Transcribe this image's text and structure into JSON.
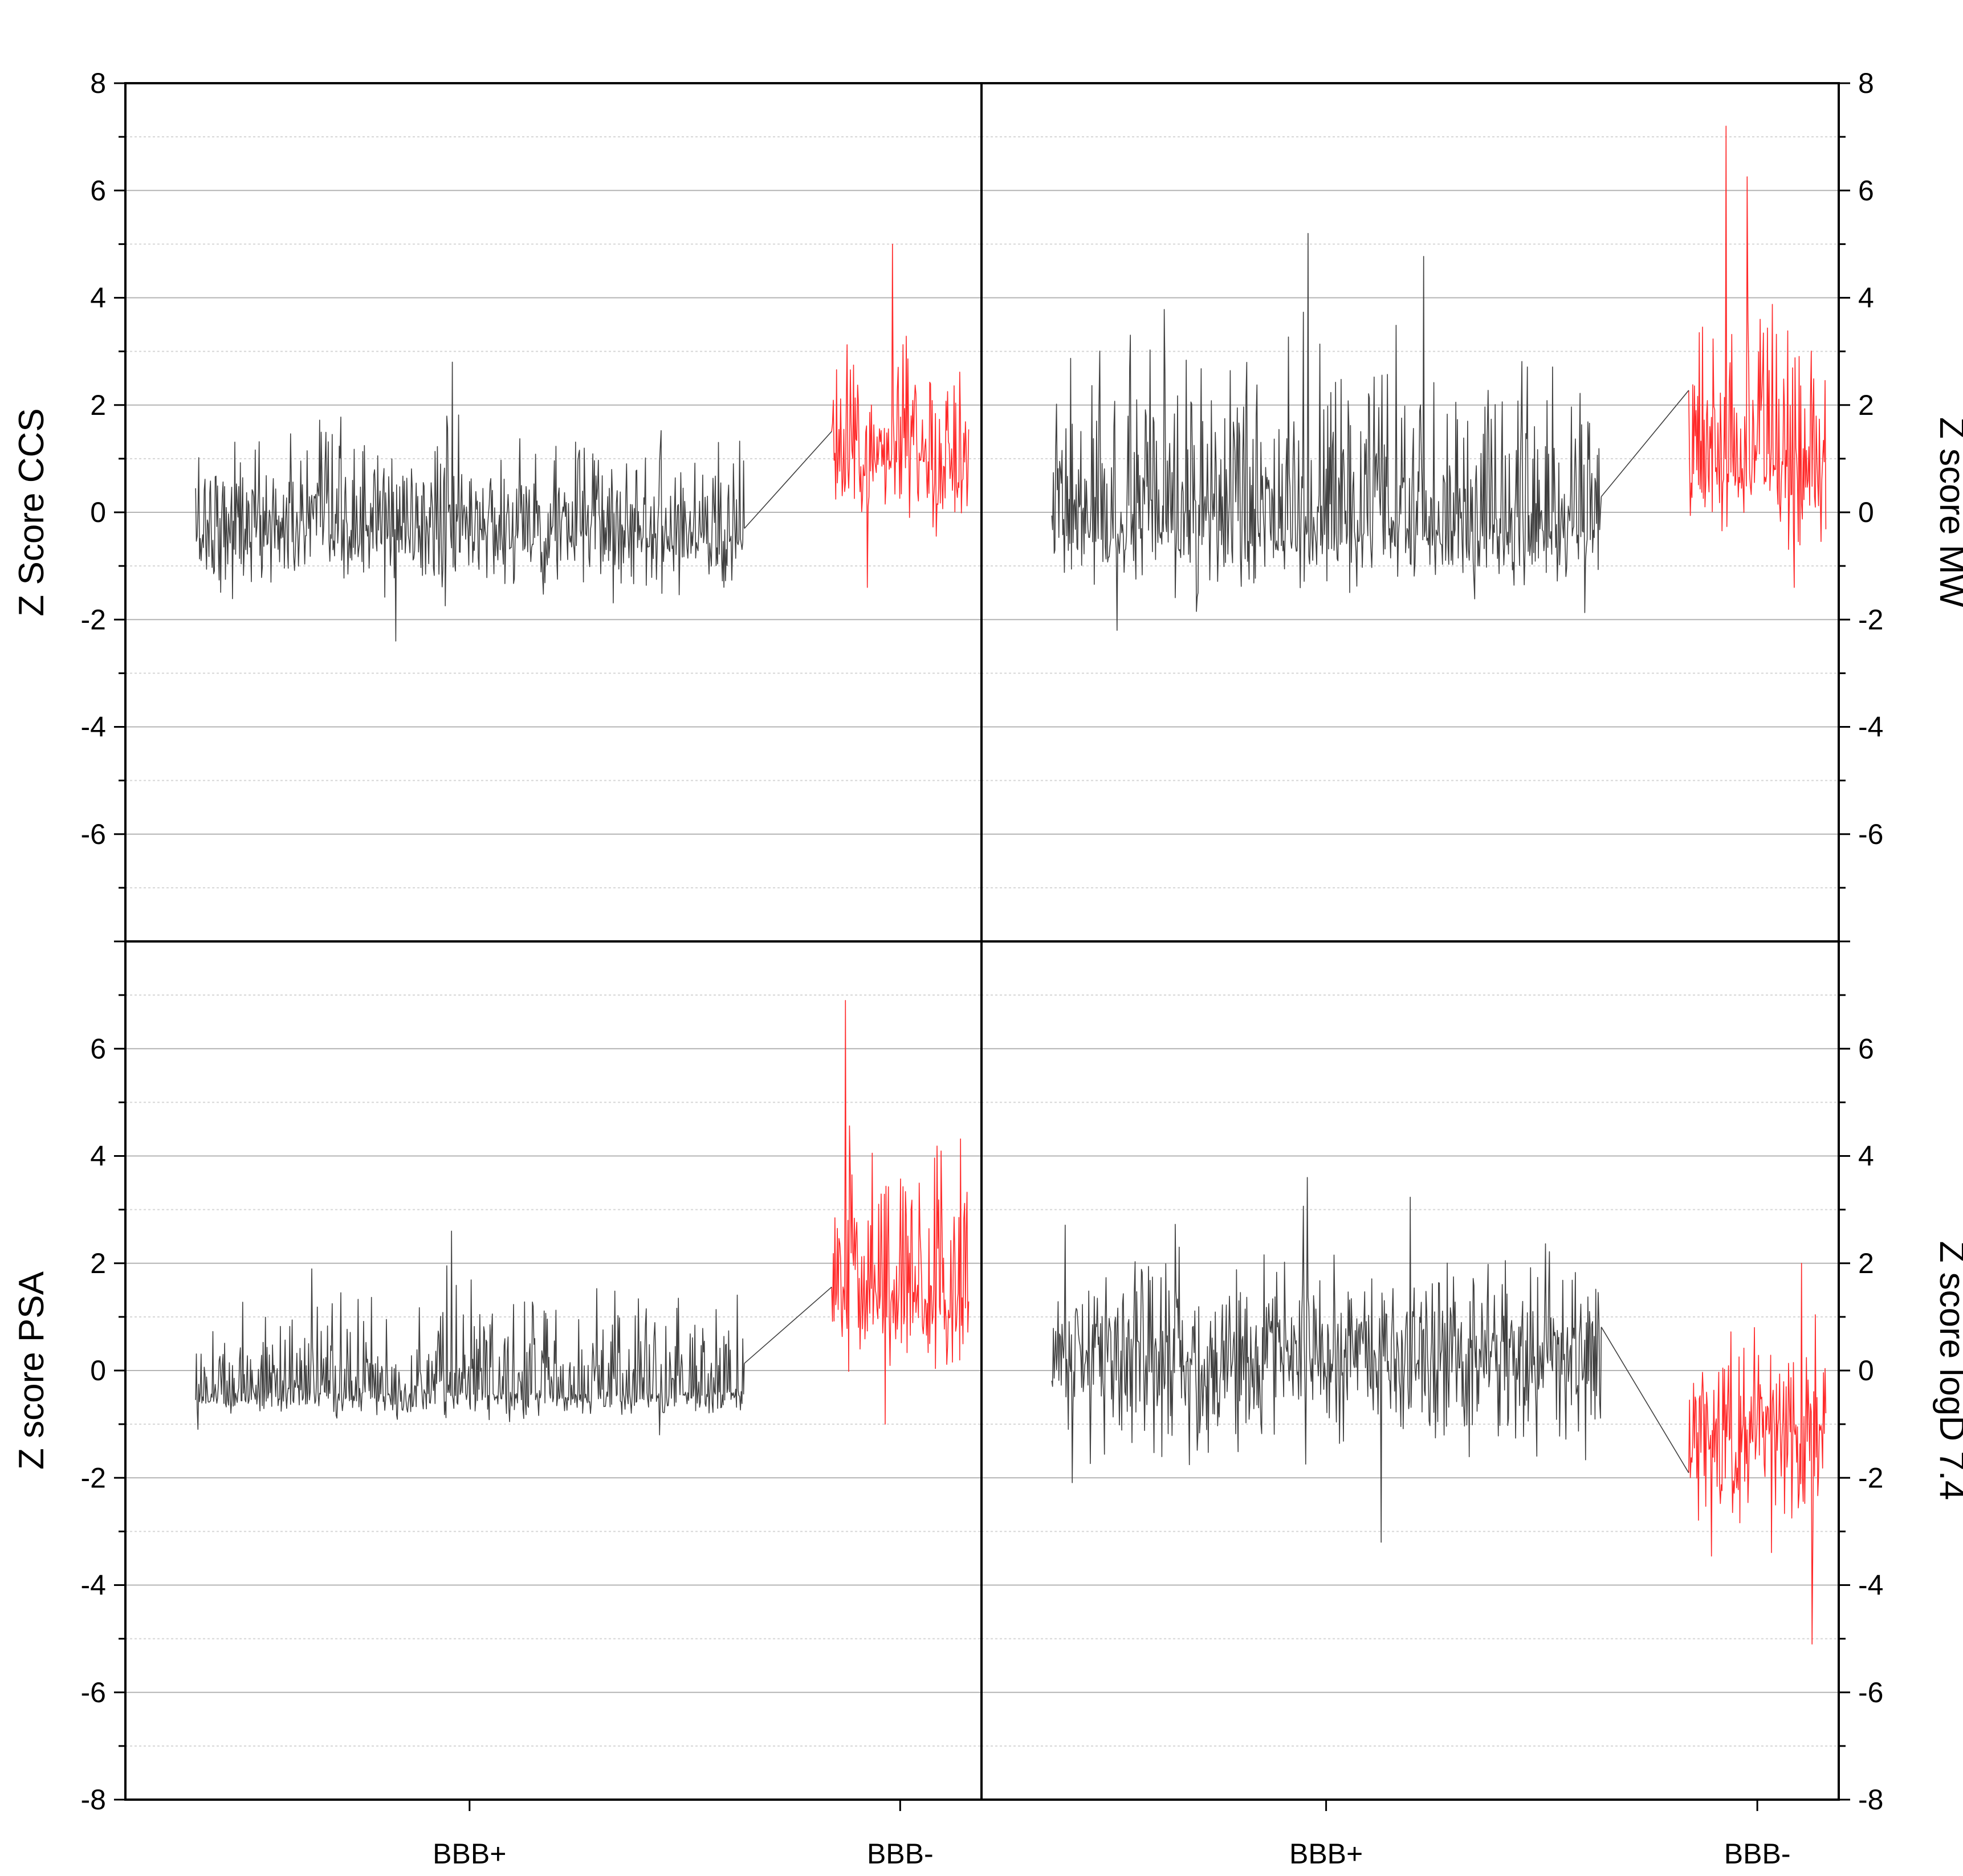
{
  "chart_data": [
    {
      "type": "line",
      "panel": "top-left",
      "ylabel": "Z Score CCS",
      "ylim": [
        -8,
        8
      ],
      "yticks": [
        8,
        6,
        4,
        2,
        0,
        -2,
        -4,
        -6
      ],
      "top_categories": [
        "BBB+",
        "BBB-"
      ],
      "bottom_categories": [],
      "grid": true,
      "series": [
        {
          "group": "BBB+",
          "color": "#404040",
          "count": 700,
          "center": -0.3,
          "min": -2.4,
          "max": 2.8
        },
        {
          "group": "BBB-",
          "color": "#ff2a2a",
          "count": 170,
          "center": 1.0,
          "min": -1.4,
          "max": 5.0
        }
      ]
    },
    {
      "type": "line",
      "panel": "top-right",
      "ylabel": "Z score MW",
      "ylim": [
        -8,
        8
      ],
      "yticks": [
        8,
        6,
        4,
        2,
        0,
        -2,
        -4,
        -6
      ],
      "top_categories": [
        "BBB+",
        "BBB-"
      ],
      "bottom_categories": [],
      "grid": true,
      "series": [
        {
          "group": "BBB+",
          "color": "#404040",
          "count": 700,
          "center": -0.3,
          "min": -2.2,
          "max": 5.2
        },
        {
          "group": "BBB-",
          "color": "#ff2a2a",
          "count": 170,
          "center": 0.9,
          "min": -1.4,
          "max": 7.2
        }
      ]
    },
    {
      "type": "line",
      "panel": "bottom-left",
      "ylabel": "Z score PSA",
      "ylim": [
        -8,
        8
      ],
      "yticks": [
        6,
        4,
        2,
        0,
        -2,
        -4,
        -6,
        -8
      ],
      "top_categories": [],
      "bottom_categories": [
        "BBB+",
        "BBB-"
      ],
      "grid": true,
      "series": [
        {
          "group": "BBB+",
          "color": "#404040",
          "count": 700,
          "center": -0.4,
          "min": -1.2,
          "max": 2.6
        },
        {
          "group": "BBB-",
          "color": "#ff2a2a",
          "count": 170,
          "center": 1.5,
          "min": -1.0,
          "max": 6.9
        }
      ]
    },
    {
      "type": "line",
      "panel": "bottom-right",
      "ylabel": "Z score logD 7.4",
      "ylim": [
        -8,
        8
      ],
      "yticks": [
        6,
        4,
        2,
        0,
        -2,
        -4,
        -6,
        -8
      ],
      "top_categories": [],
      "bottom_categories": [
        "BBB+",
        "BBB-"
      ],
      "grid": true,
      "series": [
        {
          "group": "BBB+",
          "color": "#404040",
          "count": 700,
          "center": 0.3,
          "min": -3.2,
          "max": 3.6
        },
        {
          "group": "BBB-",
          "color": "#ff2a2a",
          "count": 170,
          "center": -1.2,
          "min": -5.1,
          "max": 2.0
        }
      ]
    }
  ]
}
